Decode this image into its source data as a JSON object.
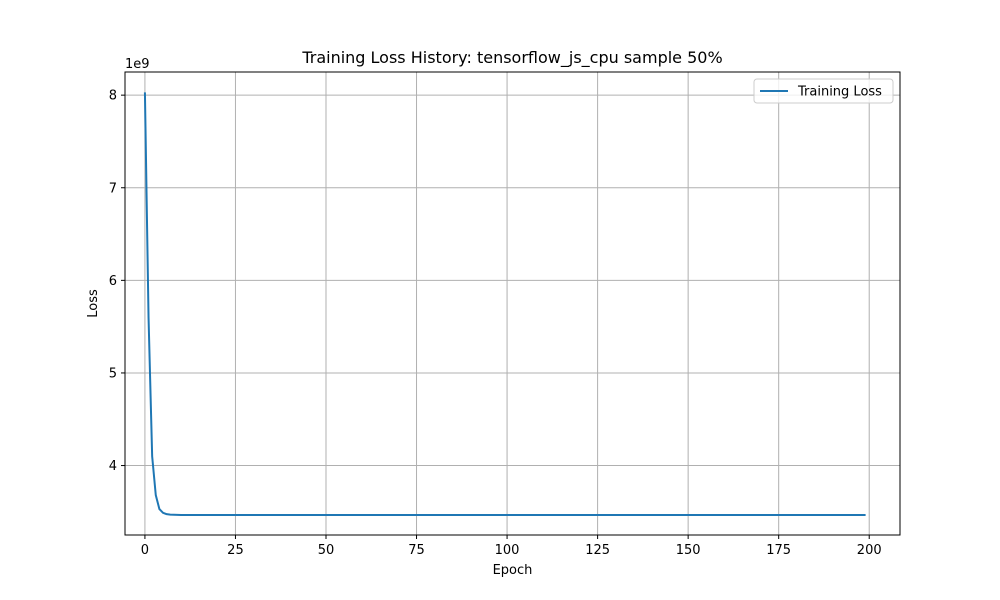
{
  "chart_data": {
    "type": "line",
    "title": "Training Loss History: tensorflow_js_cpu sample 50%",
    "xlabel": "Epoch",
    "ylabel": "Loss",
    "y_offset_label": "1e9",
    "y_scale_factor": 1000000000,
    "xlim": [
      -5.5,
      208.5
    ],
    "ylim": [
      3250000000,
      8250000000
    ],
    "xticks": [
      0,
      25,
      50,
      75,
      100,
      125,
      150,
      175,
      200
    ],
    "yticks": [
      4000000000,
      5000000000,
      6000000000,
      7000000000,
      8000000000
    ],
    "ytick_labels": [
      "4",
      "5",
      "6",
      "7",
      "8"
    ],
    "grid": true,
    "legend": "top-right",
    "colors": {
      "series": "#1f77b4",
      "grid": "#b0b0b0"
    },
    "series": [
      {
        "name": "Training Loss",
        "x": [
          0,
          1,
          2,
          3,
          4,
          5,
          6,
          7,
          8,
          9,
          10,
          199
        ],
        "y": [
          8030000000,
          5600000000,
          4100000000,
          3680000000,
          3530000000,
          3490000000,
          3475000000,
          3470000000,
          3468000000,
          3467000000,
          3466000000,
          3466000000
        ]
      }
    ]
  }
}
